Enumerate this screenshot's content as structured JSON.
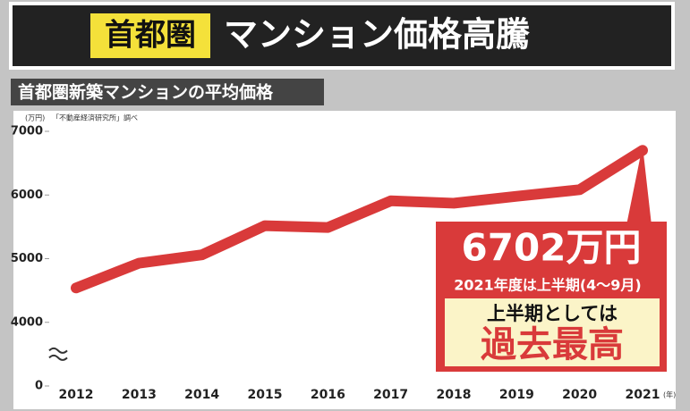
{
  "chart_data": {
    "type": "line",
    "title_highlight": "首都圏",
    "title": "マンション価格高騰",
    "subtitle": "首都圏新築マンションの平均価格",
    "source": "「不動産経済研究所」調べ",
    "y_unit": "(万円)",
    "x_unit": "(年)",
    "categories": [
      "2012",
      "2013",
      "2014",
      "2015",
      "2016",
      "2017",
      "2018",
      "2019",
      "2020",
      "2021"
    ],
    "values": [
      4540,
      4929,
      5060,
      5518,
      5490,
      5908,
      5871,
      5980,
      6083,
      6702
    ],
    "value_labels": [
      null,
      null,
      null,
      null,
      null,
      null,
      null,
      null,
      null,
      "6702万円"
    ],
    "color": "#d93a3a",
    "ylim": [
      0,
      7000
    ],
    "yticks": [
      0,
      4000,
      5000,
      6000,
      7000
    ],
    "y_break": true,
    "grid": false,
    "annotations": [
      "2021年度は上半期(4〜9月)",
      "上半期としては",
      "過去最高"
    ]
  }
}
